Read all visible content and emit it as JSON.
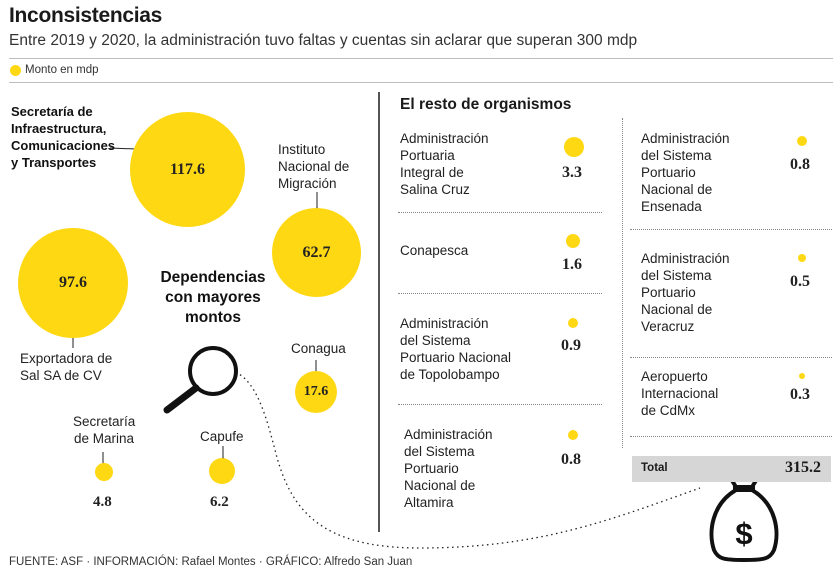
{
  "header": {
    "title": "Inconsistencias",
    "subtitle": "Entre 2019 y 2020, la administración tuvo faltas y cuentas sin aclarar que superan 300 mdp",
    "legend_label": "Monto en mdp"
  },
  "feature_label": "Dependencias con mayores montos",
  "rest_title": "El resto de organismos",
  "total": {
    "label": "Total",
    "value": "315.2"
  },
  "source": "FUENTE: ASF · INFORMACIÓN: Rafael Montes · GRÁFICO: Alfredo San Juan",
  "colors": {
    "bubble": "#FFD814",
    "divider": "#555555",
    "total_box": "#d6d6d6"
  },
  "icons": [
    "magnifier-icon",
    "money-bag-icon"
  ],
  "chart_data": {
    "type": "bubble",
    "title": "Inconsistencias",
    "unit": "mdp",
    "main": [
      {
        "name": "Secretaría de Infraestructura, Comunicaciones y Transportes",
        "lines": [
          "Secretaría de",
          "Infraestructura,",
          "Comunicaciones",
          "y Transportes"
        ],
        "value": 117.6,
        "label": "117.6"
      },
      {
        "name": "Instituto Nacional de Migración",
        "lines": [
          "Instituto",
          "Nacional de",
          "Migración"
        ],
        "value": 62.7,
        "label": "62.7"
      },
      {
        "name": "Exportadora de Sal SA de CV",
        "lines": [
          "Exportadora de",
          "Sal SA de CV"
        ],
        "value": 97.6,
        "label": "97.6"
      },
      {
        "name": "Conagua",
        "lines": [
          "Conagua"
        ],
        "value": 17.6,
        "label": "17.6"
      },
      {
        "name": "Secretaría de Marina",
        "lines": [
          "Secretaría",
          "de Marina"
        ],
        "value": 4.8,
        "label": "4.8"
      },
      {
        "name": "Capufe",
        "lines": [
          "Capufe"
        ],
        "value": 6.2,
        "label": "6.2"
      }
    ],
    "others": [
      {
        "name": "Administración Portuaria Integral de Salina Cruz",
        "lines": [
          "Administración",
          "Portuaria",
          "Integral de",
          "Salina Cruz"
        ],
        "value": 3.3,
        "label": "3.3"
      },
      {
        "name": "Conapesca",
        "lines": [
          "Conapesca"
        ],
        "value": 1.6,
        "label": "1.6"
      },
      {
        "name": "Administración del Sistema Portuario Nacional de Topolobampo",
        "lines": [
          "Administración",
          "del Sistema",
          "Portuario Nacional",
          "de Topolobampo"
        ],
        "value": 0.9,
        "label": "0.9"
      },
      {
        "name": "Administración del Sistema Portuario Nacional de Altamira",
        "lines": [
          "Administración",
          "del Sistema",
          "Portuario",
          "Nacional de",
          "Altamira"
        ],
        "value": 0.8,
        "label": "0.8"
      },
      {
        "name": "Administración del Sistema Portuario Nacional de Ensenada",
        "lines": [
          "Administración",
          "del Sistema",
          "Portuario",
          "Nacional de",
          "Ensenada"
        ],
        "value": 0.8,
        "label": "0.8"
      },
      {
        "name": "Administración del Sistema Portuario Nacional de Veracruz",
        "lines": [
          "Administración",
          "del Sistema",
          "Portuario",
          "Nacional de",
          "Veracruz"
        ],
        "value": 0.5,
        "label": "0.5"
      },
      {
        "name": "Aeropuerto Internacional de CdMx",
        "lines": [
          "Aeropuerto",
          "Internacional",
          "de CdMx"
        ],
        "value": 0.3,
        "label": "0.3"
      }
    ]
  }
}
